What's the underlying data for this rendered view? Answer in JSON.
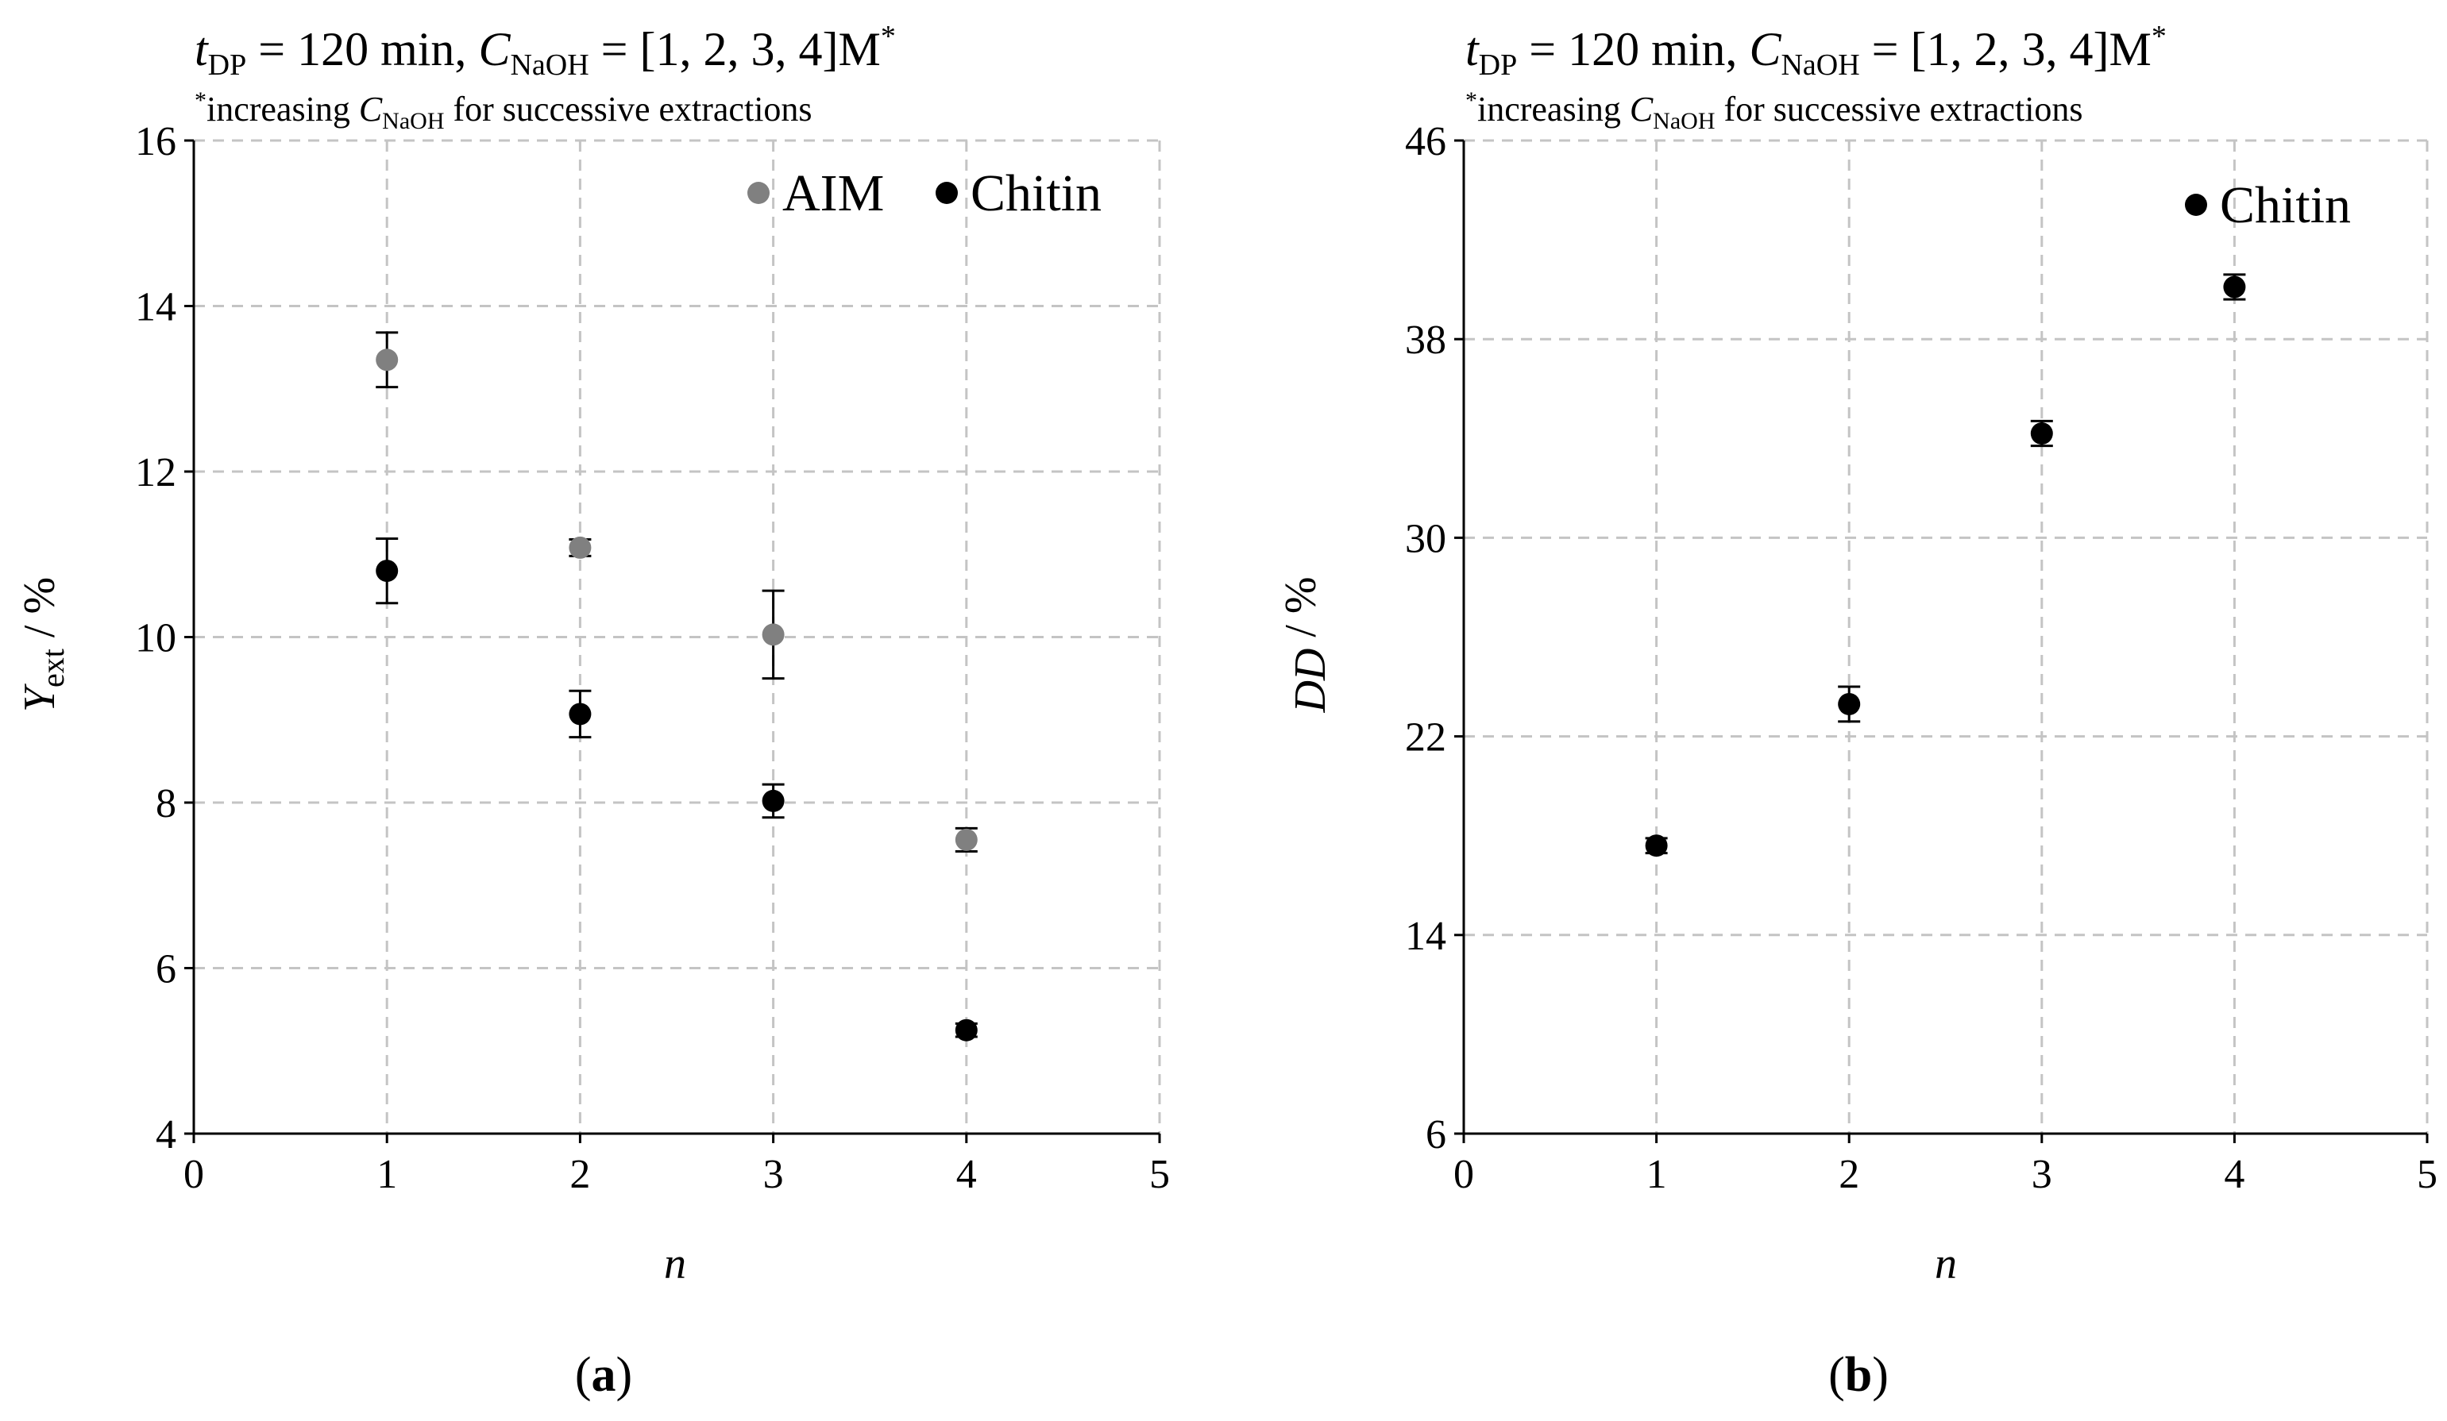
{
  "colors": {
    "aim": "#808080",
    "chitin": "#000000",
    "grid": "#c4c4c4",
    "axis": "#000000"
  },
  "chart_data": [
    {
      "type": "scatter",
      "panel_label": "(a)",
      "title": {
        "t_base": "t",
        "t_sub": "DP",
        "mid": " = 120 min, ",
        "c_base": "C",
        "c_sub": "NaOH",
        "end": " = [1, 2, 3, 4]M",
        "sup": "*"
      },
      "note": {
        "sup": "*",
        "pre": "increasing ",
        "c_base": "C",
        "c_sub": "NaOH",
        "post": " for successive extractions"
      },
      "xlabel": "n",
      "ylabel": {
        "base": "Y",
        "sub": "ext",
        "unit": " / %"
      },
      "xlim": [
        0,
        5
      ],
      "ylim": [
        4,
        16
      ],
      "xticks": [
        "0",
        "1",
        "2",
        "3",
        "4",
        "5"
      ],
      "yticks": [
        "4",
        "6",
        "8",
        "10",
        "12",
        "14",
        "16"
      ],
      "series": [
        {
          "name": "AIM",
          "color_key": "aim",
          "x": [
            1,
            2,
            3,
            4
          ],
          "y": [
            13.35,
            11.08,
            10.03,
            7.55
          ],
          "err": [
            0.33,
            0.1,
            0.53,
            0.14
          ]
        },
        {
          "name": "Chitin",
          "color_key": "chitin",
          "x": [
            1,
            2,
            3,
            4
          ],
          "y": [
            10.8,
            9.07,
            8.02,
            5.25
          ],
          "err": [
            0.39,
            0.28,
            0.2,
            0.08
          ]
        }
      ]
    },
    {
      "type": "scatter",
      "panel_label": "(b)",
      "title": {
        "t_base": "t",
        "t_sub": "DP",
        "mid": " = 120 min, ",
        "c_base": "C",
        "c_sub": "NaOH",
        "end": " = [1, 2, 3, 4]M",
        "sup": "*"
      },
      "note": {
        "sup": "*",
        "pre": "increasing ",
        "c_base": "C",
        "c_sub": "NaOH",
        "post": " for successive extractions"
      },
      "xlabel": "n",
      "ylabel": {
        "base": "DD",
        "sub": "",
        "unit": " / %"
      },
      "xlim": [
        0,
        5
      ],
      "ylim": [
        6,
        46
      ],
      "xticks": [
        "0",
        "1",
        "2",
        "3",
        "4",
        "5"
      ],
      "yticks": [
        "6",
        "14",
        "22",
        "30",
        "38",
        "46"
      ],
      "series": [
        {
          "name": "Chitin",
          "color_key": "chitin",
          "x": [
            1,
            2,
            3,
            4
          ],
          "y": [
            17.6,
            23.3,
            34.2,
            40.1
          ],
          "err": [
            0.3,
            0.7,
            0.5,
            0.5
          ]
        }
      ]
    }
  ]
}
